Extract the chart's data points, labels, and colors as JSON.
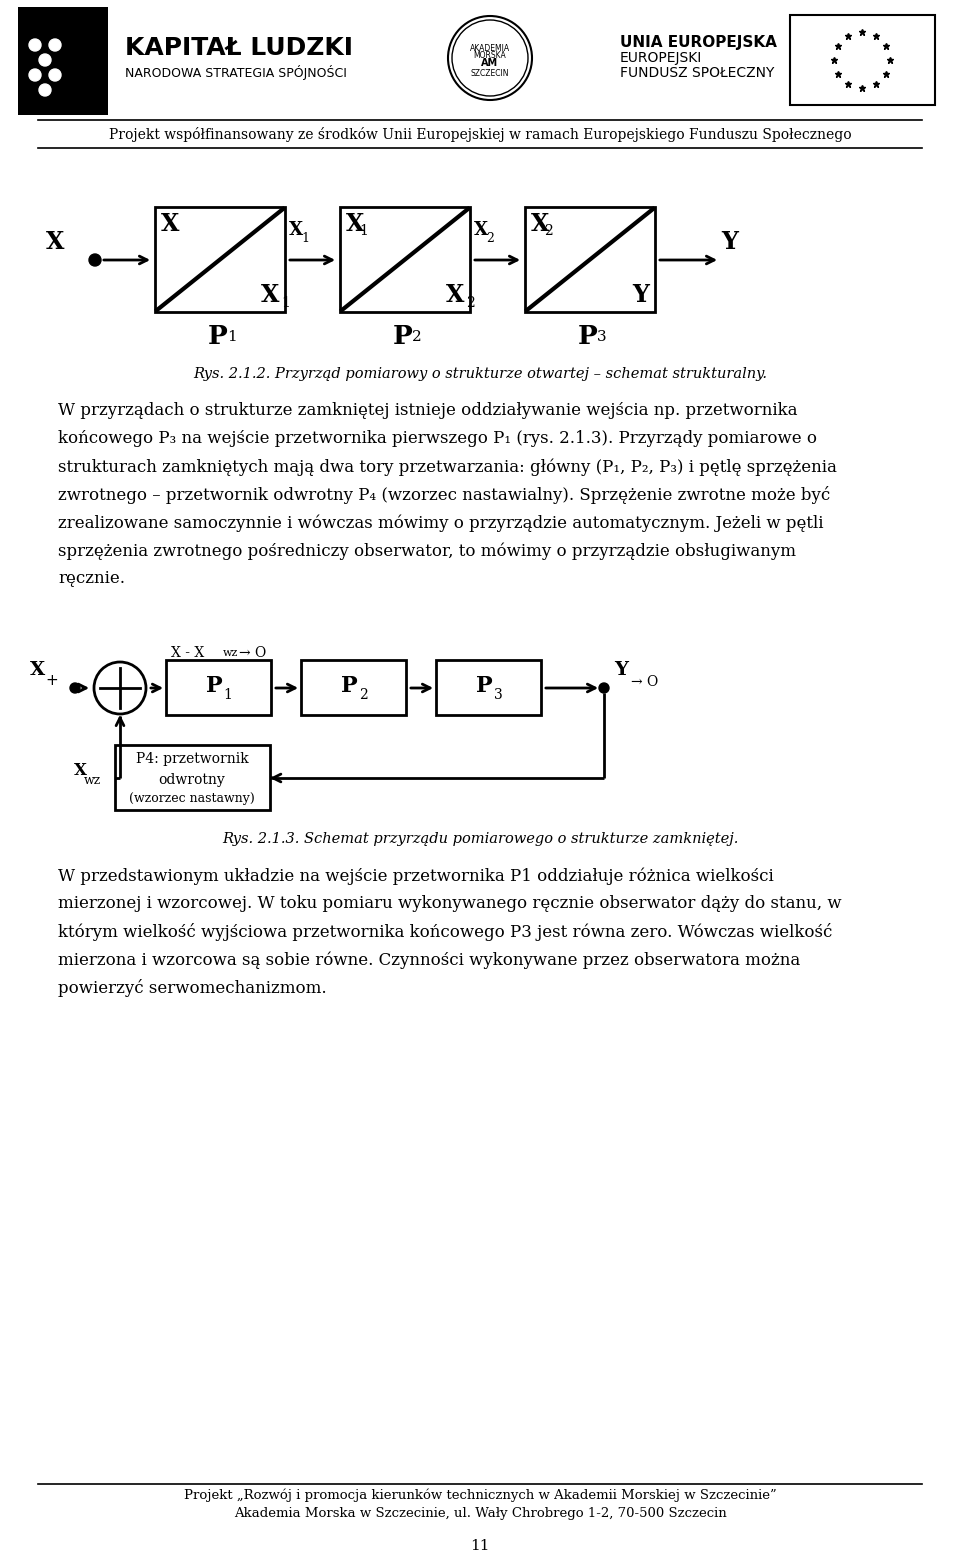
{
  "bg_color": "#ffffff",
  "lw": 2.0,
  "header_projekt": "Projekt współfinansowany ze środków Unii Europejskiej w ramach Europejskiego Funduszu Społecznego",
  "caption1": "Rys. 2.1.2. Przyrząd pomiarowy o strukturze otwartej – schemat strukturalny.",
  "caption2": "Rys. 2.1.3. Schemat przyrządu pomiarowego o strukturze zamkniętej.",
  "para1_lines": [
    "W przyrządach o strukturze zamkniętej istnieje oddziaływanie wejścia np. przetwornika",
    "końcowego P₃ na wejście przetwornika pierwszego P₁ (rys. 2.1.3). Przyrządy pomiarowe o",
    "strukturach zamkniętych mają dwa tory przetwarzania: główny (P₁, P₂, P₃) i pętlę sprzężenia",
    "zwrotnego – przetwornik odwrotny P₄ (wzorzec nastawialny). Sprzężenie zwrotne może być",
    "zrealizowane samoczynnie i wówczas mówimy o przyrządzie automatycznym. Jeżeli w pętli",
    "sprzężenia zwrotnego pośredniczy obserwator, to mówimy o przyrządzie obsługiwanym",
    "ręcznie."
  ],
  "para2_lines": [
    "W przedstawionym układzie na wejście przetwornika P1 oddziałuje różnica wielkości",
    "mierzonej i wzorcowej. W toku pomiaru wykonywanego ręcznie obserwator dąży do stanu, w",
    "którym wielkość wyjściowa przetwornika końcowego P3 jest równa zero. Wówczas wielkość",
    "mierzona i wzorcowa są sobie równe. Czynności wykonywane przez obserwatora można",
    "powierzyć serwomechanizmom."
  ],
  "footer_line1": "Projekt „Rozwój i promocja kierunków technicznych w Akademii Morskiej w Szczecinie”",
  "footer_line2": "Akademia Morska w Szczecinie, ul. Wały Chrobrego 1-2, 70-500 Szczecin",
  "footer_page": "11"
}
